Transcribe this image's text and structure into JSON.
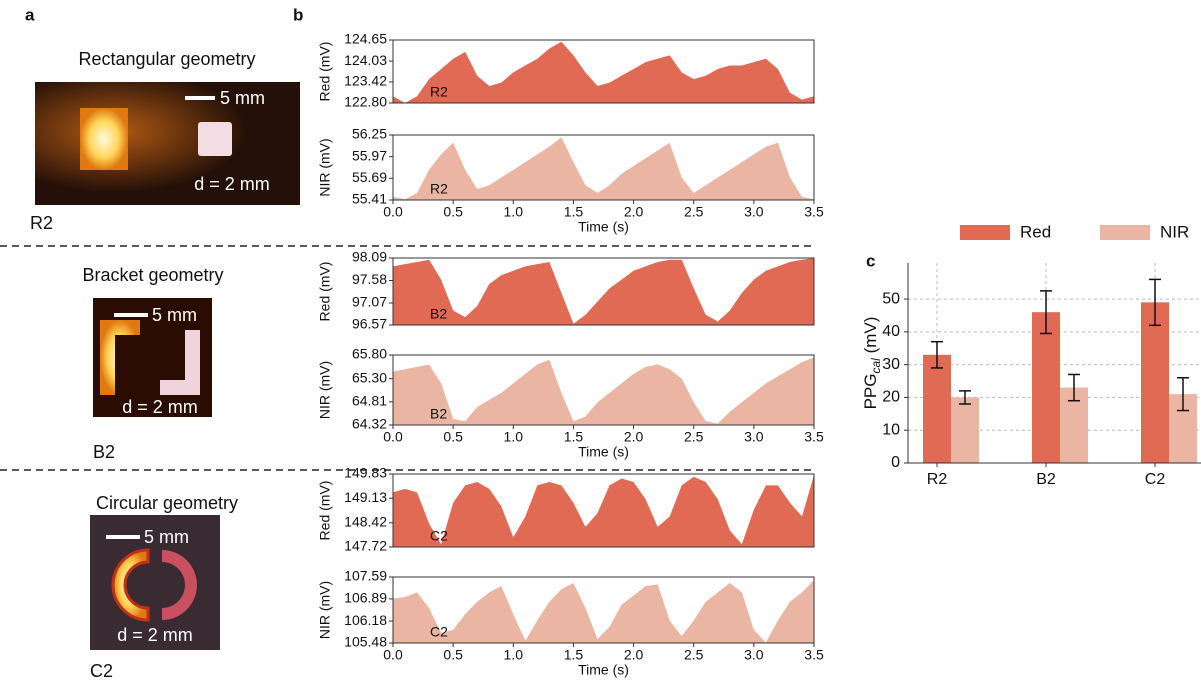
{
  "figure_labels": [
    "a",
    "b",
    "c"
  ],
  "photos": [
    {
      "title": "Rectangular geometry",
      "scale": "5 mm",
      "distance": "d = 2 mm",
      "name": "R2"
    },
    {
      "title": "Bracket geometry",
      "scale": "5 mm",
      "distance": "d = 2 mm",
      "name": "B2"
    },
    {
      "title": "Circular geometry",
      "scale": "5 mm",
      "distance": "d = 2 mm",
      "name": "C2"
    }
  ],
  "chart_data": [
    {
      "type": "area",
      "ylabel": "Red (mV)",
      "label": "R2",
      "color": "#e06a54",
      "x": [
        0,
        0.1,
        0.2,
        0.3,
        0.4,
        0.5,
        0.6,
        0.7,
        0.8,
        0.9,
        1,
        1.1,
        1.2,
        1.3,
        1.4,
        1.5,
        1.6,
        1.7,
        1.8,
        1.9,
        2,
        2.1,
        2.2,
        2.3,
        2.4,
        2.5,
        2.6,
        2.7,
        2.8,
        2.9,
        3,
        3.1,
        3.2,
        3.3,
        3.4,
        3.5
      ],
      "values": [
        123.0,
        122.8,
        123.0,
        123.5,
        123.8,
        124.1,
        124.3,
        123.6,
        123.3,
        123.4,
        123.7,
        123.9,
        124.1,
        124.4,
        124.6,
        124.2,
        123.7,
        123.3,
        123.4,
        123.6,
        123.8,
        124.0,
        124.1,
        124.2,
        123.7,
        123.5,
        123.6,
        123.8,
        123.9,
        123.9,
        124.0,
        124.1,
        123.8,
        123.1,
        122.9,
        123.0
      ],
      "xlim": [
        0,
        3.5
      ],
      "ylim": [
        122.8,
        124.65
      ],
      "yticks": [
        {
          "value": 122.8,
          "label": "122.80"
        },
        123.42,
        124.03,
        124.65
      ]
    },
    {
      "type": "area",
      "ylabel": "NIR (mV)",
      "label": "R2",
      "color": "#ebb5a3",
      "xlabel": "Time (s)",
      "x": [
        0,
        0.1,
        0.2,
        0.3,
        0.4,
        0.5,
        0.6,
        0.7,
        0.8,
        0.9,
        1,
        1.1,
        1.2,
        1.3,
        1.4,
        1.5,
        1.6,
        1.7,
        1.8,
        1.9,
        2,
        2.1,
        2.2,
        2.3,
        2.4,
        2.5,
        2.6,
        2.7,
        2.8,
        2.9,
        3,
        3.1,
        3.2,
        3.3,
        3.4,
        3.5
      ],
      "values": [
        55.45,
        55.42,
        55.5,
        55.8,
        56.0,
        56.15,
        55.8,
        55.55,
        55.6,
        55.7,
        55.8,
        55.9,
        56.0,
        56.1,
        56.22,
        55.9,
        55.6,
        55.5,
        55.6,
        55.75,
        55.85,
        55.95,
        56.05,
        56.15,
        55.7,
        55.5,
        55.6,
        55.7,
        55.8,
        55.9,
        56.0,
        56.1,
        56.15,
        55.7,
        55.45,
        55.42
      ],
      "xlim": [
        0,
        3.5
      ],
      "ylim": [
        55.41,
        56.25
      ],
      "yticks": [
        55.41,
        55.69,
        55.97,
        56.25
      ],
      "xticks": [
        {
          "value": 0,
          "label": "0.0"
        },
        0.5,
        {
          "value": 1,
          "label": "1.0"
        },
        1.5,
        {
          "value": 2,
          "label": "2.0"
        },
        2.5,
        {
          "value": 3,
          "label": "3.0"
        },
        3.5
      ]
    },
    {
      "type": "area",
      "ylabel": "Red (mV)",
      "label": "B2",
      "color": "#e06a54",
      "x": [
        0,
        0.1,
        0.2,
        0.3,
        0.4,
        0.5,
        0.6,
        0.7,
        0.8,
        0.9,
        1,
        1.1,
        1.2,
        1.3,
        1.4,
        1.5,
        1.6,
        1.7,
        1.8,
        1.9,
        2,
        2.1,
        2.2,
        2.3,
        2.4,
        2.5,
        2.6,
        2.7,
        2.8,
        2.9,
        3,
        3.1,
        3.2,
        3.3,
        3.4,
        3.5
      ],
      "values": [
        97.9,
        97.95,
        98.0,
        98.05,
        97.6,
        96.9,
        96.75,
        97.0,
        97.5,
        97.7,
        97.8,
        97.9,
        97.95,
        98.0,
        97.3,
        96.6,
        96.8,
        97.1,
        97.4,
        97.6,
        97.8,
        97.9,
        98.0,
        98.05,
        98.05,
        97.4,
        96.8,
        96.65,
        96.9,
        97.3,
        97.6,
        97.8,
        97.9,
        98.0,
        98.05,
        98.09
      ],
      "xlim": [
        0,
        3.5
      ],
      "ylim": [
        96.57,
        98.09
      ],
      "yticks": [
        96.57,
        97.07,
        97.58,
        98.09
      ]
    },
    {
      "type": "area",
      "ylabel": "NIR (mV)",
      "label": "B2",
      "color": "#ebb5a3",
      "xlabel": "Time (s)",
      "x": [
        0,
        0.1,
        0.2,
        0.3,
        0.4,
        0.5,
        0.6,
        0.7,
        0.8,
        0.9,
        1,
        1.1,
        1.2,
        1.3,
        1.4,
        1.5,
        1.6,
        1.7,
        1.8,
        1.9,
        2,
        2.1,
        2.2,
        2.3,
        2.4,
        2.5,
        2.6,
        2.7,
        2.8,
        2.9,
        3,
        3.1,
        3.2,
        3.3,
        3.4,
        3.5
      ],
      "values": [
        65.45,
        65.5,
        65.55,
        65.6,
        65.2,
        64.45,
        64.4,
        64.7,
        64.85,
        65.0,
        65.2,
        65.4,
        65.6,
        65.7,
        65.0,
        64.4,
        64.5,
        64.8,
        65.0,
        65.2,
        65.4,
        65.55,
        65.6,
        65.5,
        65.3,
        64.8,
        64.4,
        64.35,
        64.6,
        64.8,
        65.0,
        65.2,
        65.35,
        65.5,
        65.65,
        65.75
      ],
      "xlim": [
        0,
        3.5
      ],
      "ylim": [
        64.32,
        65.8
      ],
      "yticks": [
        64.32,
        64.81,
        {
          "value": 65.3,
          "label": "65.30"
        },
        {
          "value": 65.8,
          "label": "65.80"
        }
      ],
      "xticks": [
        {
          "value": 0,
          "label": "0.0"
        },
        0.5,
        {
          "value": 1,
          "label": "1.0"
        },
        1.5,
        {
          "value": 2,
          "label": "2.0"
        },
        2.5,
        {
          "value": 3,
          "label": "3.0"
        },
        3.5
      ]
    },
    {
      "type": "area",
      "ylabel": "Red (mV)",
      "label": "C2",
      "color": "#e06a54",
      "x": [
        0,
        0.1,
        0.2,
        0.3,
        0.4,
        0.5,
        0.6,
        0.7,
        0.8,
        0.9,
        1,
        1.1,
        1.2,
        1.3,
        1.4,
        1.5,
        1.6,
        1.7,
        1.8,
        1.9,
        2,
        2.1,
        2.2,
        2.3,
        2.4,
        2.5,
        2.6,
        2.7,
        2.8,
        2.9,
        3,
        3.1,
        3.2,
        3.3,
        3.4,
        3.5
      ],
      "values": [
        149.3,
        149.4,
        149.3,
        148.4,
        147.8,
        149.0,
        149.5,
        149.6,
        149.4,
        148.9,
        148.0,
        148.6,
        149.5,
        149.6,
        149.5,
        149.0,
        148.3,
        148.7,
        149.5,
        149.7,
        149.6,
        149.1,
        148.3,
        148.6,
        149.5,
        149.75,
        149.6,
        149.1,
        148.2,
        147.8,
        148.8,
        149.5,
        149.5,
        149.0,
        148.6,
        149.8
      ],
      "xlim": [
        0,
        3.5
      ],
      "ylim": [
        147.72,
        149.83
      ],
      "yticks": [
        147.72,
        148.42,
        149.13,
        149.83
      ]
    },
    {
      "type": "area",
      "ylabel": "NIR (mV)",
      "label": "C2",
      "color": "#ebb5a3",
      "xlabel": "Time (s)",
      "x": [
        0,
        0.1,
        0.2,
        0.3,
        0.4,
        0.5,
        0.6,
        0.7,
        0.8,
        0.9,
        1,
        1.1,
        1.2,
        1.3,
        1.4,
        1.5,
        1.6,
        1.7,
        1.8,
        1.9,
        2,
        2.1,
        2.2,
        2.3,
        2.4,
        2.5,
        2.6,
        2.7,
        2.8,
        2.9,
        3,
        3.1,
        3.2,
        3.3,
        3.4,
        3.5
      ],
      "values": [
        106.9,
        106.95,
        107.1,
        106.6,
        105.8,
        105.9,
        106.4,
        106.8,
        107.1,
        107.3,
        106.4,
        105.55,
        106.2,
        106.8,
        107.2,
        107.4,
        106.6,
        105.6,
        106.0,
        106.7,
        107.0,
        107.3,
        107.35,
        106.2,
        105.7,
        106.2,
        106.8,
        107.1,
        107.4,
        107.1,
        105.9,
        105.5,
        106.2,
        106.8,
        107.1,
        107.5
      ],
      "xlim": [
        0,
        3.5
      ],
      "ylim": [
        105.48,
        107.59
      ],
      "yticks": [
        105.48,
        106.18,
        106.89,
        107.59
      ],
      "xticks": [
        {
          "value": 0,
          "label": "0.0"
        },
        0.5,
        {
          "value": 1,
          "label": "1.0"
        },
        1.5,
        {
          "value": 2,
          "label": "2.0"
        },
        2.5,
        {
          "value": 3,
          "label": "3.0"
        },
        3.5
      ]
    },
    {
      "type": "bar",
      "ylabel": {
        "main": "PPG",
        "sub": "cal",
        "unit": " (mV)"
      },
      "categories": [
        "R2",
        "B2",
        "C2"
      ],
      "series": [
        {
          "name": "Red",
          "color": "#e06a54",
          "values": [
            33,
            46,
            49
          ],
          "errors": [
            4,
            6.5,
            7
          ]
        },
        {
          "name": "NIR",
          "color": "#ebb5a3",
          "values": [
            20,
            23,
            21
          ],
          "errors": [
            2,
            4,
            5
          ]
        }
      ],
      "ylim": [
        0,
        61
      ],
      "yticks": [
        0,
        10,
        20,
        30,
        40,
        50
      ],
      "grid": true
    }
  ]
}
